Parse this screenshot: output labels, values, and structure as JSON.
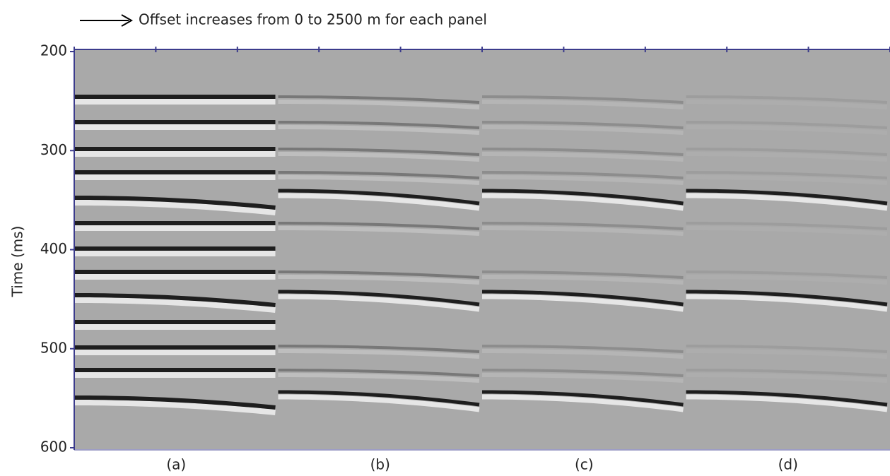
{
  "annotation": "Offset increases from 0 to 2500 m for each panel",
  "chart_data": {
    "type": "seismic",
    "y_label": "Time (ms)",
    "ylim": [
      200,
      600
    ],
    "y_inverted": true,
    "yticks": [
      200,
      300,
      400,
      500,
      600
    ],
    "categories": [
      "(a)",
      "(b)",
      "(c)",
      "(d)"
    ]
  }
}
